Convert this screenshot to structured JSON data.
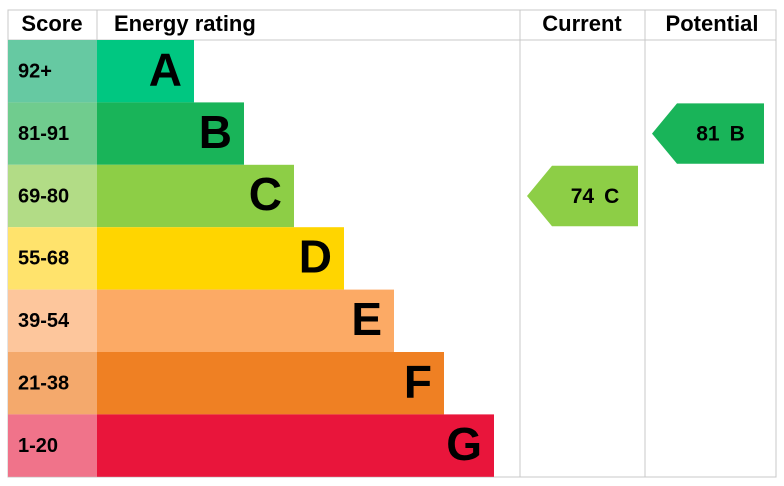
{
  "headers": {
    "score": "Score",
    "rating": "Energy rating",
    "current": "Current",
    "potential": "Potential"
  },
  "bands": [
    {
      "score": "92+",
      "letter": "A",
      "color": "#00c781",
      "light_color": "#66c9a2"
    },
    {
      "score": "81-91",
      "letter": "B",
      "color": "#19b459",
      "light_color": "#70cc8e"
    },
    {
      "score": "69-80",
      "letter": "C",
      "color": "#8dce46",
      "light_color": "#b2dc86"
    },
    {
      "score": "55-68",
      "letter": "D",
      "color": "#ffd500",
      "light_color": "#ffe36c"
    },
    {
      "score": "39-54",
      "letter": "E",
      "color": "#fcaa65",
      "light_color": "#fdc69c"
    },
    {
      "score": "21-38",
      "letter": "F",
      "color": "#ef8023",
      "light_color": "#f4a96c"
    },
    {
      "score": "1-20",
      "letter": "G",
      "color": "#e9153b",
      "light_color": "#f0738a"
    }
  ],
  "current": {
    "value": 74,
    "letter": "C"
  },
  "potential": {
    "value": 81,
    "letter": "B"
  }
}
